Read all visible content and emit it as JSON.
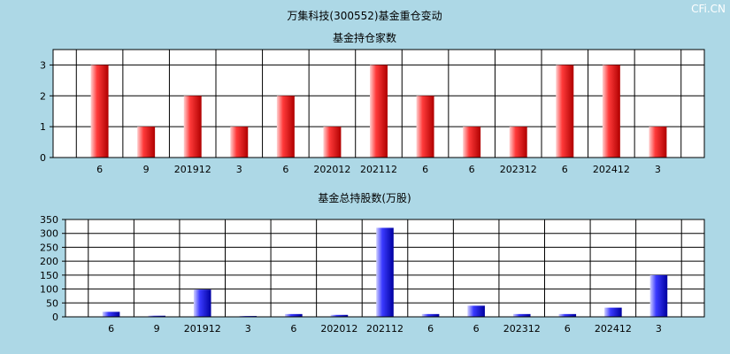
{
  "page": {
    "title": "万集科技(300552)基金重仓变动",
    "watermark": "CFi.CN"
  },
  "chart_data": [
    {
      "type": "bar",
      "title": "基金持仓家数",
      "categories": [
        "6",
        "9",
        "201912",
        "3",
        "6",
        "202012",
        "202112",
        "6",
        "6",
        "202312",
        "6",
        "202412",
        "3"
      ],
      "values": [
        3,
        1,
        2,
        1,
        2,
        1,
        3,
        2,
        1,
        1,
        3,
        3,
        1
      ],
      "ylim": [
        0,
        3.5
      ],
      "yticks": [
        0,
        1,
        2,
        3
      ],
      "grid": true,
      "bar_color": "#ff3333"
    },
    {
      "type": "bar",
      "title": "基金总持股数(万股)",
      "categories": [
        "6",
        "9",
        "201912",
        "3",
        "6",
        "202012",
        "202112",
        "6",
        "6",
        "202312",
        "6",
        "202412",
        "3"
      ],
      "values": [
        18,
        4,
        98,
        3,
        10,
        7,
        320,
        10,
        40,
        10,
        10,
        33,
        150
      ],
      "ylim": [
        0,
        350
      ],
      "yticks": [
        0,
        50,
        100,
        150,
        200,
        250,
        300,
        350
      ],
      "grid": true,
      "bar_color": "#3333ff"
    }
  ]
}
